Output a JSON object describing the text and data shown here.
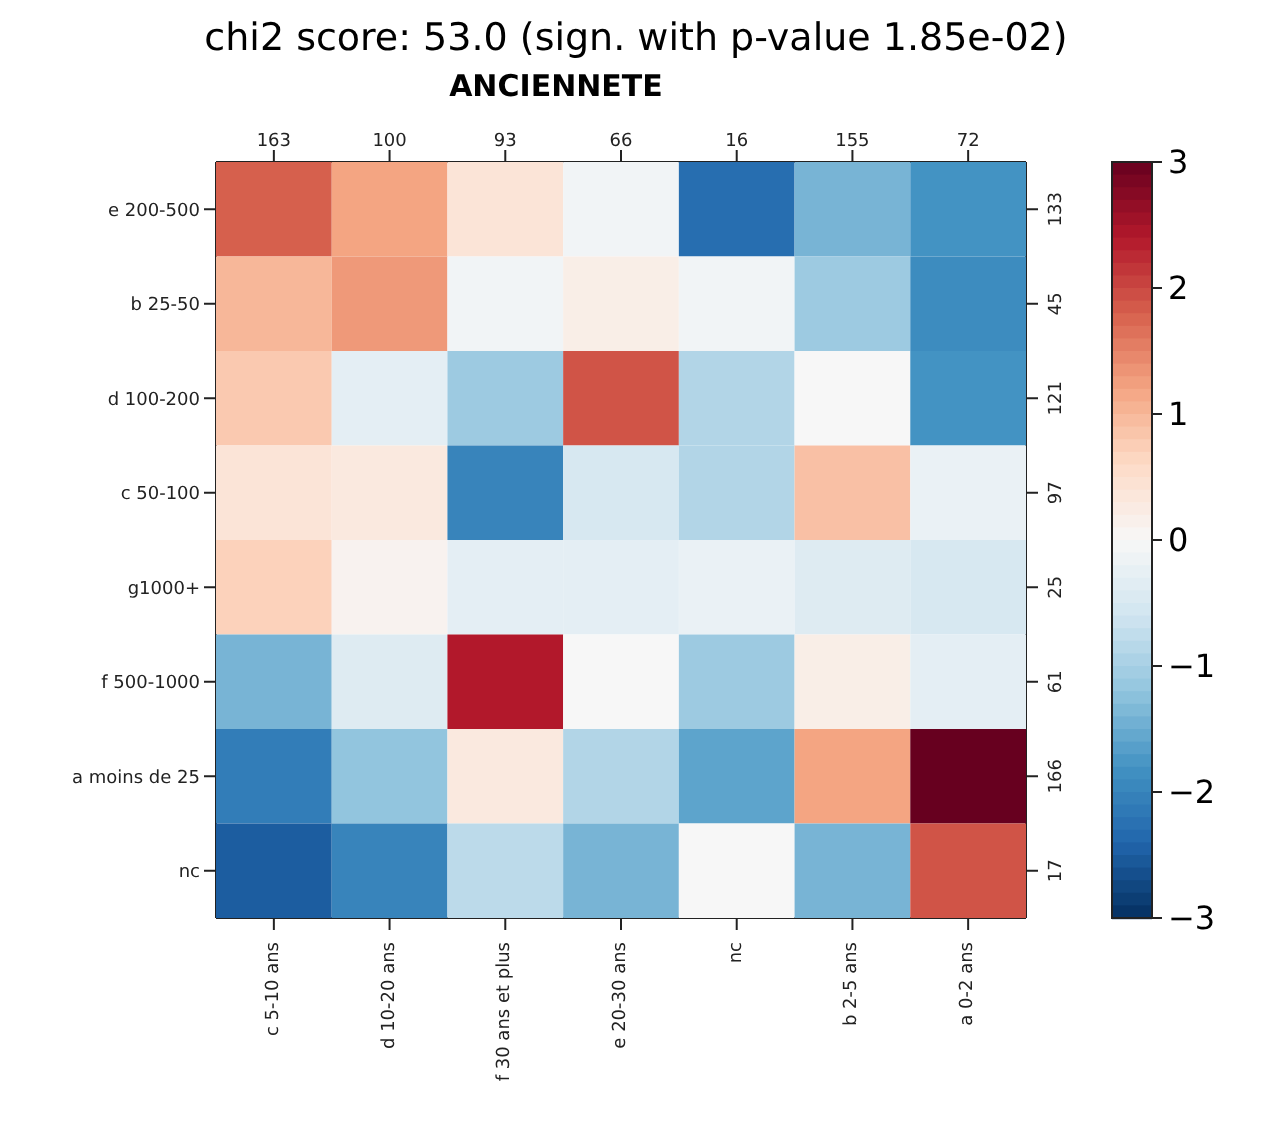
{
  "chart_data": {
    "type": "heatmap",
    "title": "chi2 score: 53.0 (sign. with p-value 1.85e-02)",
    "subtitle": "ANCIENNETE",
    "categories": [
      "c 5-10 ans",
      "d 10-20 ans",
      "f 30 ans et plus",
      "e 20-30 ans",
      "nc",
      "b 2-5 ans",
      "a 0-2 ans"
    ],
    "y_categories": [
      "e 200-500",
      "b 25-50",
      "d 100-200",
      "c 50-100",
      "g1000+",
      "f 500-1000",
      "a moins de 25",
      "nc"
    ],
    "y2_categories": [
      "133",
      "45",
      "121",
      "97",
      "25",
      "61",
      "166",
      "17"
    ],
    "annotations": [
      "163",
      "100",
      "93",
      "66",
      "16",
      "155",
      "72"
    ],
    "cells": [
      [
        1.8,
        1.2,
        0.4,
        -0.1,
        -2.3,
        -1.4,
        -1.8
      ],
      [
        1.0,
        1.3,
        -0.1,
        0.2,
        -0.1,
        -1.1,
        -1.9
      ],
      [
        0.8,
        -0.3,
        -1.1,
        1.9,
        -0.9,
        0.0,
        -1.8
      ],
      [
        0.4,
        0.3,
        -2.0,
        -0.5,
        -0.9,
        0.9,
        -0.2
      ],
      [
        0.7,
        0.1,
        -0.3,
        -0.3,
        -0.2,
        -0.4,
        -0.5
      ],
      [
        -1.4,
        -0.4,
        2.4,
        0.0,
        -1.1,
        0.2,
        -0.3
      ],
      [
        -2.1,
        -1.2,
        0.3,
        -0.9,
        -1.6,
        1.2,
        3.0
      ],
      [
        -2.5,
        -2.0,
        -0.8,
        -1.4,
        0.0,
        -1.4,
        1.9
      ]
    ],
    "clim": [
      -3,
      3
    ],
    "cticks": [
      -3,
      -2,
      -1,
      0,
      1,
      2,
      3
    ]
  }
}
